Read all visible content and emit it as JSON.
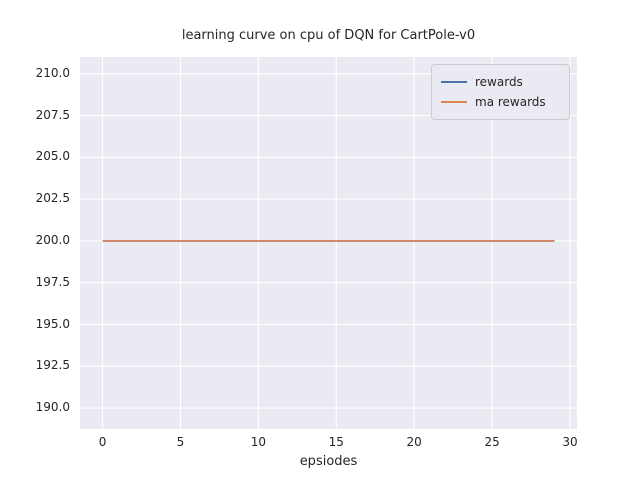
{
  "figure": {
    "title": "learning curve on cpu of DQN for CartPole-v0",
    "xlabel": "epsiodes"
  },
  "chart_data": {
    "type": "line",
    "title": "learning curve on cpu of DQN for CartPole-v0",
    "xlabel": "epsiodes",
    "ylabel": "",
    "xlim": [
      -1.45,
      30.45
    ],
    "ylim": [
      188.75,
      211.0
    ],
    "xticks": [
      0,
      5,
      10,
      15,
      20,
      25,
      30
    ],
    "yticks": [
      190.0,
      192.5,
      195.0,
      197.5,
      200.0,
      202.5,
      205.0,
      207.5,
      210.0
    ],
    "grid": true,
    "plot_bg": "#eaeaf2",
    "grid_color": "#ffffff",
    "legend_position": "upper right",
    "x": [
      0,
      1,
      2,
      3,
      4,
      5,
      6,
      7,
      8,
      9,
      10,
      11,
      12,
      13,
      14,
      15,
      16,
      17,
      18,
      19,
      20,
      21,
      22,
      23,
      24,
      25,
      26,
      27,
      28,
      29
    ],
    "series": [
      {
        "name": "rewards",
        "color": "#4c72b0",
        "values": [
          200,
          200,
          200,
          200,
          200,
          200,
          200,
          200,
          200,
          200,
          200,
          200,
          200,
          200,
          200,
          200,
          200,
          200,
          200,
          200,
          200,
          200,
          200,
          200,
          200,
          200,
          200,
          200,
          200,
          200
        ]
      },
      {
        "name": "ma rewards",
        "color": "#dd8452",
        "values": [
          200,
          200,
          200,
          200,
          200,
          200,
          200,
          200,
          200,
          200,
          200,
          200,
          200,
          200,
          200,
          200,
          200,
          200,
          200,
          200,
          200,
          200,
          200,
          200,
          200,
          200,
          200,
          200,
          200,
          200
        ]
      }
    ]
  }
}
